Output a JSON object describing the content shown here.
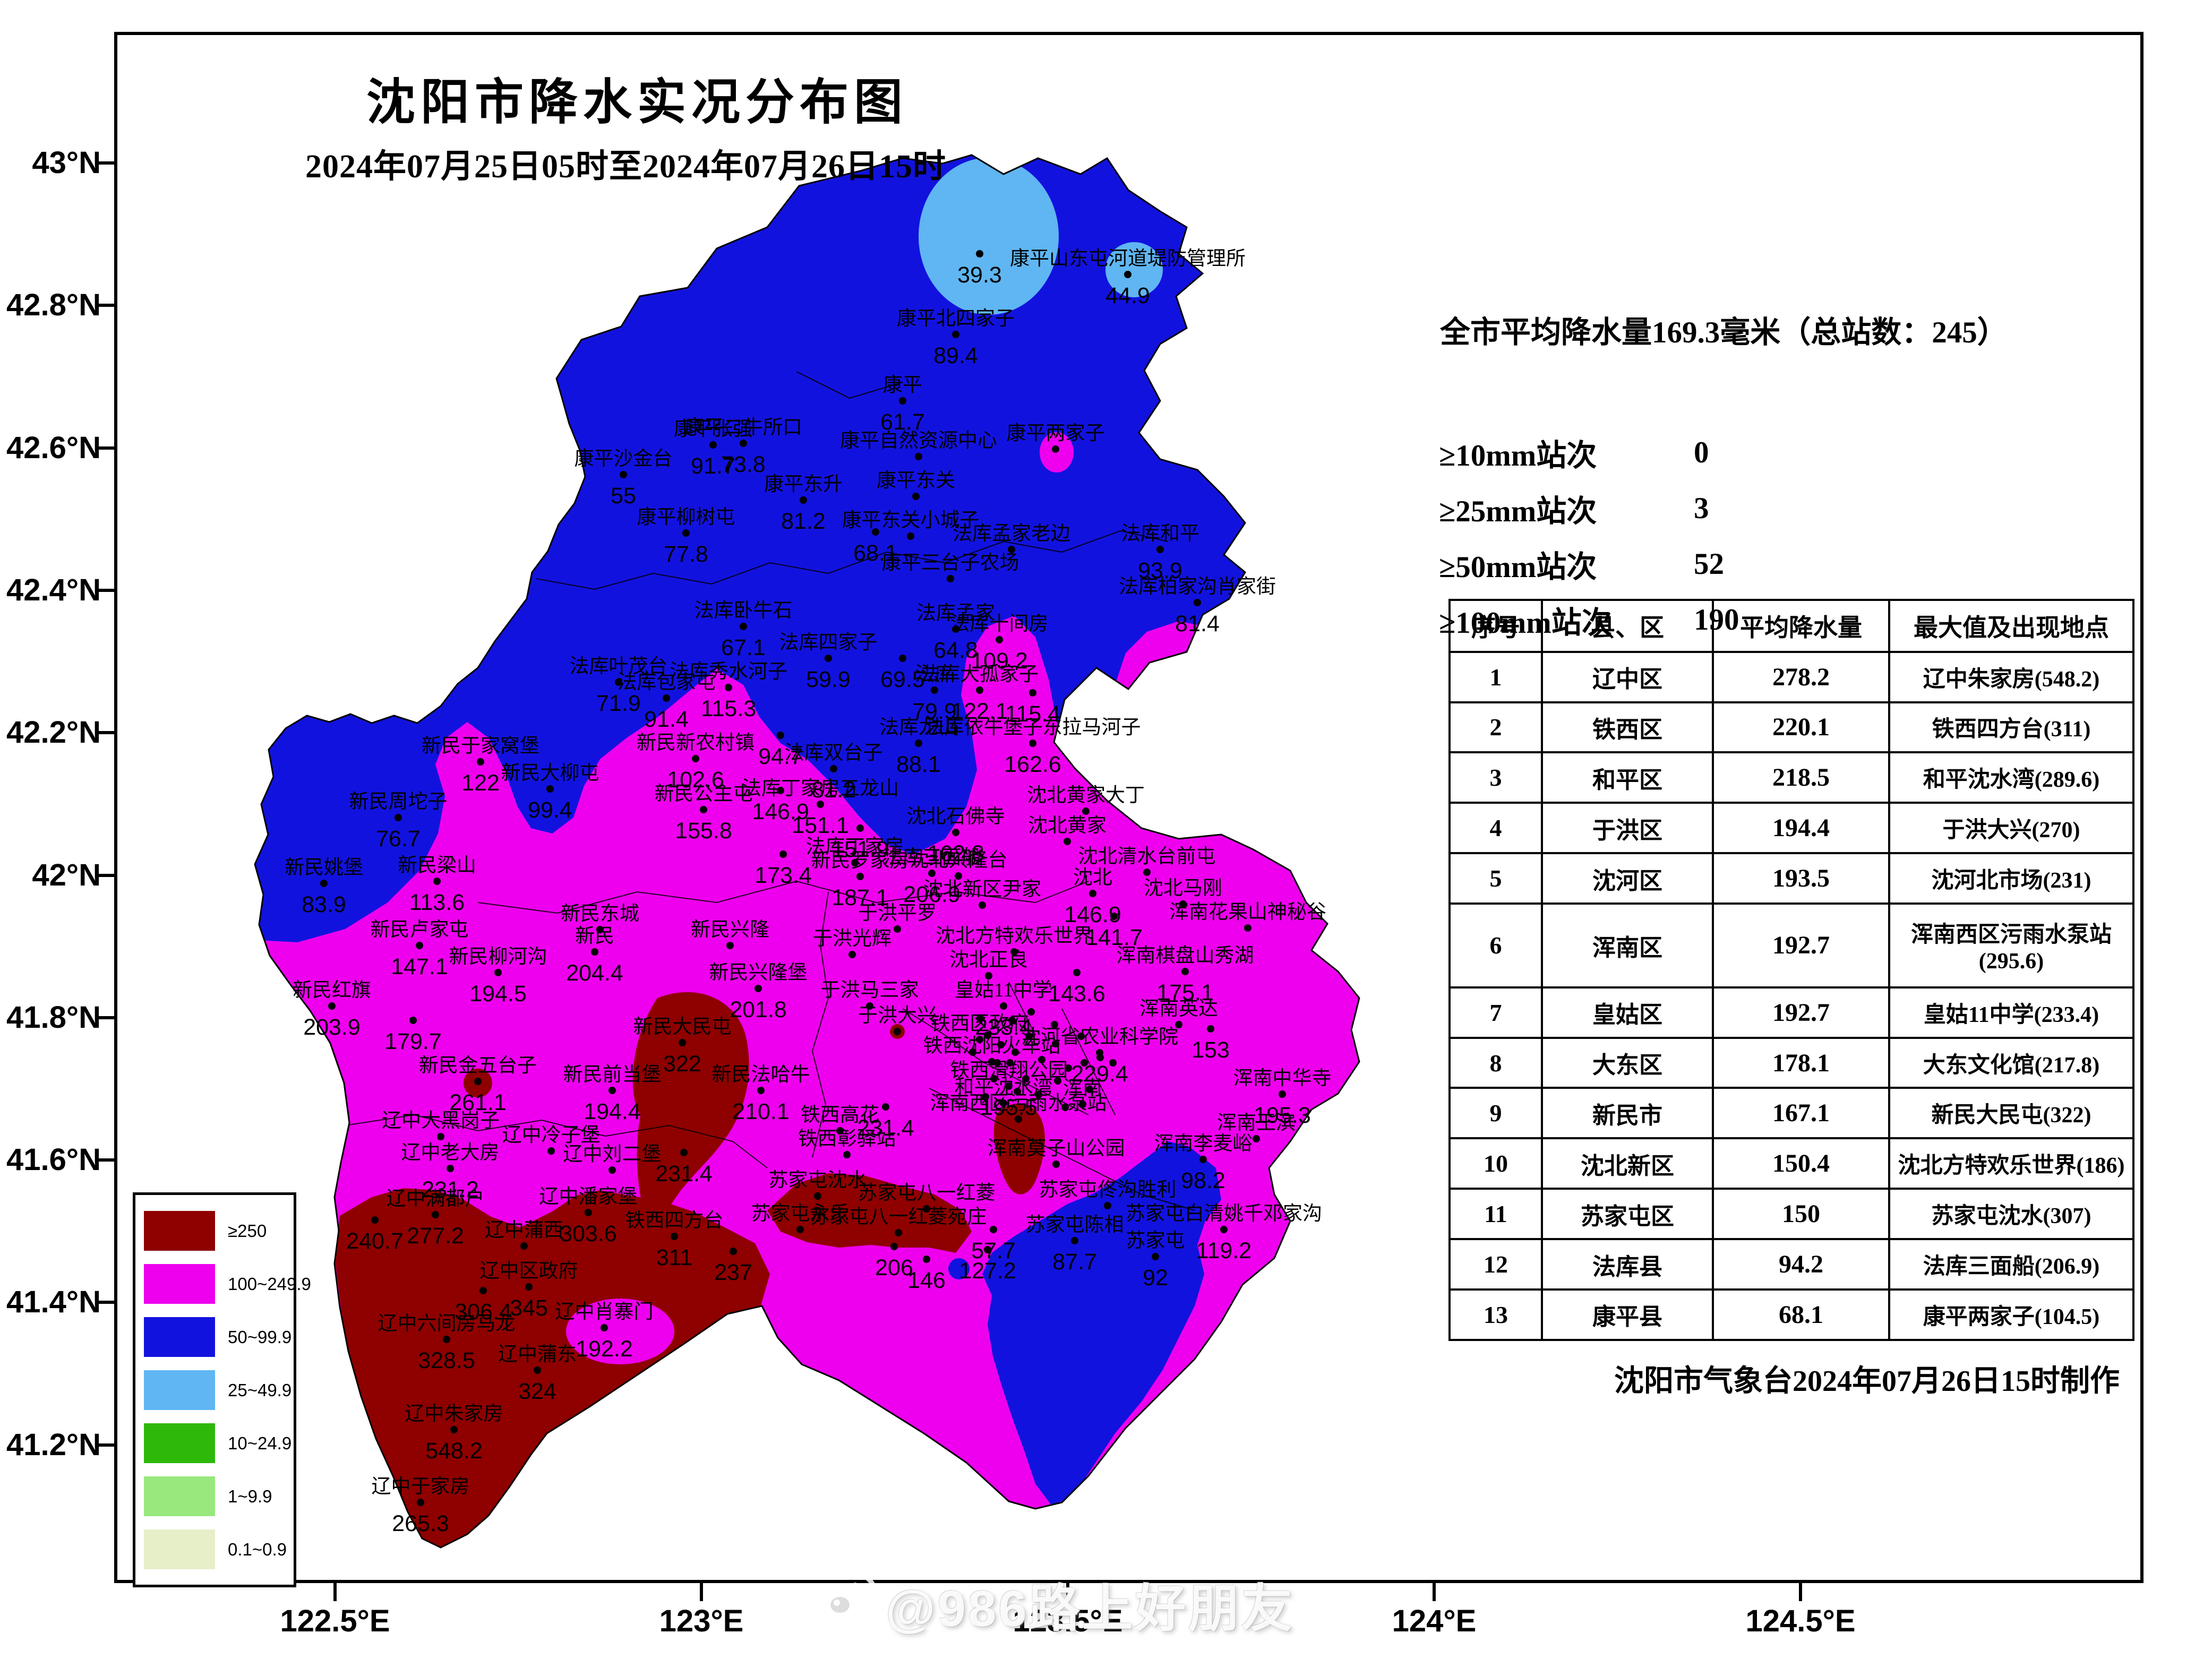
{
  "title": "沈阳市降水实况分布图",
  "subtitle": "2024年07月25日05时至2024年07月26日15时",
  "summary": "全市平均降水量169.3毫米（总站数：245）",
  "station_counts": [
    {
      "label": "≥10mm站次",
      "value": "0"
    },
    {
      "label": "≥25mm站次",
      "value": "3"
    },
    {
      "label": "≥50mm站次",
      "value": "52"
    },
    {
      "label": "≥100mm站次",
      "value": "190"
    }
  ],
  "axes": {
    "y_ticks": [
      "43°N",
      "42.8°N",
      "42.6°N",
      "42.4°N",
      "42.2°N",
      "42°N",
      "41.8°N",
      "41.6°N",
      "41.4°N",
      "41.2°N"
    ],
    "x_ticks": [
      "122.5°E",
      "123°E",
      "123.5°E",
      "124°E",
      "124.5°E"
    ]
  },
  "legend": [
    {
      "label": "≥250",
      "color": "#8F0000"
    },
    {
      "label": "100~249.9",
      "color": "#EE00EE"
    },
    {
      "label": "50~99.9",
      "color": "#1212DF"
    },
    {
      "label": "25~49.9",
      "color": "#5FB6F2"
    },
    {
      "label": "10~24.9",
      "color": "#2EB809"
    },
    {
      "label": "1~9.9",
      "color": "#98E87E"
    },
    {
      "label": "0.1~0.9",
      "color": "#E7EFC9"
    }
  ],
  "table": {
    "headers": [
      "序号",
      "县、区",
      "平均降水量",
      "最大值及出现地点"
    ],
    "rows": [
      {
        "no": "1",
        "district": "辽中区",
        "avg": "278.2",
        "max_place": "辽中朱家房",
        "max_value": "548.2"
      },
      {
        "no": "2",
        "district": "铁西区",
        "avg": "220.1",
        "max_place": "铁西四方台",
        "max_value": "311"
      },
      {
        "no": "3",
        "district": "和平区",
        "avg": "218.5",
        "max_place": "和平沈水湾",
        "max_value": "289.6"
      },
      {
        "no": "4",
        "district": "于洪区",
        "avg": "194.4",
        "max_place": "于洪大兴",
        "max_value": "270"
      },
      {
        "no": "5",
        "district": "沈河区",
        "avg": "193.5",
        "max_place": "沈河北市场",
        "max_value": "231"
      },
      {
        "no": "6",
        "district": "浑南区",
        "avg": "192.7",
        "max_place": "浑南西区污雨水泵站",
        "max_value": "295.6"
      },
      {
        "no": "7",
        "district": "皇姑区",
        "avg": "192.7",
        "max_place": "皇姑11中学",
        "max_value": "233.4"
      },
      {
        "no": "8",
        "district": "大东区",
        "avg": "178.1",
        "max_place": "大东文化馆",
        "max_value": "217.8"
      },
      {
        "no": "9",
        "district": "新民市",
        "avg": "167.1",
        "max_place": "新民大民屯",
        "max_value": "322"
      },
      {
        "no": "10",
        "district": "沈北新区",
        "avg": "150.4",
        "max_place": "沈北方特欢乐世界",
        "max_value": "186"
      },
      {
        "no": "11",
        "district": "苏家屯区",
        "avg": "150",
        "max_place": "苏家屯沈水",
        "max_value": "307"
      },
      {
        "no": "12",
        "district": "法库县",
        "avg": "94.2",
        "max_place": "法库三面船",
        "max_value": "206.9"
      },
      {
        "no": "13",
        "district": "康平县",
        "avg": "68.1",
        "max_place": "康平两家子",
        "max_value": "104.5"
      }
    ]
  },
  "footer": "沈阳市气象台2024年07月26日15时制作",
  "watermark": "@986路上好朋友",
  "map": {
    "stations": [
      [
        "",
        "39.3",
        1845,
        478
      ],
      [
        "康平山东屯河道堤防管理所",
        "44.9",
        2124,
        517
      ],
      [
        "康平北四家子",
        "89.4",
        1800,
        630
      ],
      [
        "康平",
        "61.7",
        1700,
        755
      ],
      [
        "康平两家子",
        "",
        1988,
        846
      ],
      [
        "康平二牛所口",
        "73.8",
        1400,
        835
      ],
      [
        "康平自然资源中心",
        "",
        1730,
        860
      ],
      [
        "康平东关",
        "",
        1725,
        935
      ],
      [
        "康平东关小城子",
        "",
        1715,
        1010
      ],
      [
        "康平三台子农场",
        "",
        1790,
        1090
      ],
      [
        "康平沙金台",
        "55",
        1174,
        894
      ],
      [
        "康平张强",
        "91.7",
        1343,
        838
      ],
      [
        "康平柳树屯",
        "77.8",
        1292,
        1004
      ],
      [
        "康平东升",
        "81.2",
        1513,
        942
      ],
      [
        "",
        "68.1",
        1649,
        1002
      ],
      [
        "法库孟家老边",
        "",
        1905,
        1035
      ],
      [
        "法库和平",
        "93.9",
        2185,
        1035
      ],
      [
        "法库柏家沟肖家街",
        "81.4",
        2255,
        1135
      ],
      [
        "法库孟家",
        "64.8",
        1800,
        1185
      ],
      [
        "",
        "69.5",
        1700,
        1240
      ],
      [
        "法库",
        "79.9",
        1760,
        1300
      ],
      [
        "法库十间房",
        "109.2",
        1882,
        1205
      ],
      [
        "法库大孤家子",
        "122.1",
        1845,
        1300
      ],
      [
        "",
        "115.4",
        1945,
        1305
      ],
      [
        "法库依牛堡子东拉马河子",
        "162.6",
        1945,
        1400
      ],
      [
        "法库卧牛石",
        "67.1",
        1400,
        1180
      ],
      [
        "法库秀水河子",
        "115.3",
        1372,
        1295
      ],
      [
        "法库叶茂台",
        "71.9",
        1165,
        1285
      ],
      [
        "法库包家屯",
        "91.4",
        1255,
        1315
      ],
      [
        "",
        "94.7",
        1470,
        1385
      ],
      [
        "法库四家子",
        "59.9",
        1560,
        1240
      ],
      [
        "法库丁家房五龙山",
        "151.1",
        1545,
        1515
      ],
      [
        "法库双台子",
        "81.2",
        1570,
        1448
      ],
      [
        "法库龙山",
        "88.1",
        1730,
        1400
      ],
      [
        "法库三面船",
        "206.9",
        1755,
        1645
      ],
      [
        "",
        "151.9",
        1620,
        1560
      ],
      [
        "法库丁家房",
        "",
        1610,
        1625
      ],
      [
        "新民于家窝堡",
        "122",
        905,
        1435
      ],
      [
        "新民大柳屯",
        "99.4",
        1036,
        1486
      ],
      [
        "新民新农村镇",
        "102.6",
        1310,
        1429
      ],
      [
        "新民公主屯",
        "155.8",
        1325,
        1525
      ],
      [
        "",
        "146.9",
        1470,
        1489
      ],
      [
        "",
        "173.4",
        1475,
        1609
      ],
      [
        "新民周坨子",
        "76.7",
        750,
        1540
      ],
      [
        "新民姚堡",
        "83.9",
        610,
        1664
      ],
      [
        "新民梁山",
        "113.6",
        823,
        1660
      ],
      [
        "新民东城",
        "",
        1130,
        1751
      ],
      [
        "新民",
        "204.4",
        1120,
        1793
      ],
      [
        "新民兴隆",
        "",
        1375,
        1781
      ],
      [
        "新民兴隆堡",
        "201.8",
        1428,
        1862
      ],
      [
        "新民卢家屯",
        "147.1",
        790,
        1781
      ],
      [
        "新民柳河沟",
        "194.5",
        938,
        1832
      ],
      [
        "新民红旗",
        "203.9",
        625,
        1895
      ],
      [
        "",
        "179.7",
        778,
        1922
      ],
      [
        "新民罗家房",
        "187.1",
        1620,
        1651
      ],
      [
        "新民金五台子",
        "261.1",
        900,
        2037
      ],
      [
        "新民大民屯",
        "322",
        1285,
        1964
      ],
      [
        "新民前当堡",
        "194.4",
        1153,
        2054
      ],
      [
        "新民法哈牛",
        "210.1",
        1433,
        2054
      ],
      [
        "辽中大黑岗子",
        "",
        830,
        2141
      ],
      [
        "辽中冷子堡",
        "",
        1038,
        2168
      ],
      [
        "辽中刘二堡",
        "",
        1153,
        2204
      ],
      [
        "",
        "231.4",
        1288,
        2171
      ],
      [
        "辽中老大房",
        "231.2",
        848,
        2201
      ],
      [
        "辽中满都户",
        "277.2",
        820,
        2288
      ],
      [
        "",
        "240.7",
        706,
        2298
      ],
      [
        "辽中潘家堡",
        "303.6",
        1108,
        2284
      ],
      [
        "辽中蒲西",
        "",
        987,
        2347
      ],
      [
        "铁西四方台",
        "311",
        1270,
        2329
      ],
      [
        "",
        "237",
        1381,
        2357
      ],
      [
        "辽中区政府",
        "345",
        996,
        2424
      ],
      [
        "",
        "306.4",
        910,
        2431
      ],
      [
        "辽中六间房马龙",
        "328.5",
        841,
        2523
      ],
      [
        "辽中蒲东",
        "324",
        1012,
        2581
      ],
      [
        "辽中肖寨门",
        "192.2",
        1138,
        2501
      ],
      [
        "辽中朱家房",
        "548.2",
        855,
        2693
      ],
      [
        "辽中于家房",
        "265.3",
        792,
        2830
      ],
      [
        "铁西区政府",
        "",
        1845,
        1958
      ],
      [
        "沈河省农业科学院",
        "229.4",
        2071,
        1983
      ],
      [
        "铁西沈阳火车站",
        "",
        1868,
        2000
      ],
      [
        "铁西滑翔公园",
        "195.5",
        1900,
        2046
      ],
      [
        "和平沈水湾",
        "",
        1890,
        2078
      ],
      [
        "浑南",
        "",
        2039,
        2080
      ],
      [
        "",
        "231.4",
        1668,
        2085
      ],
      [
        "铁西高花",
        "",
        1582,
        2130
      ],
      [
        "铁西彰驿站",
        "",
        1595,
        2175
      ],
      [
        "苏家屯沈水",
        "",
        1540,
        2253
      ],
      [
        "苏家屯永乐",
        "",
        1507,
        2316
      ],
      [
        "苏家屯八一红菱",
        "",
        1745,
        2277
      ],
      [
        "苏家屯八一红菱宛庄",
        "",
        1692,
        2322
      ],
      [
        "",
        "57.7",
        1871,
        2316
      ],
      [
        "",
        "206",
        1684,
        2348
      ],
      [
        "",
        "146",
        1745,
        2372
      ],
      [
        "",
        "127.2",
        1860,
        2354
      ],
      [
        "苏家屯佟沟胜利",
        "",
        2086,
        2271
      ],
      [
        "苏家屯陈相",
        "87.7",
        2024,
        2337
      ],
      [
        "苏家屯",
        "92",
        2176,
        2367
      ],
      [
        "苏家屯白清姚千邓家沟",
        "119.2",
        2305,
        2316
      ],
      [
        "浑南西区污雨水泵站",
        "",
        1918,
        2108
      ],
      [
        "浑南莫子山公园",
        "",
        1989,
        2193
      ],
      [
        "浑南中华寺",
        "195.3",
        2415,
        2061
      ],
      [
        "浑南王滨",
        "",
        2366,
        2145
      ],
      [
        "浑南李麦峪",
        "98.2",
        2266,
        2184
      ],
      [
        "沈北石佛寺",
        "162.8",
        1800,
        1568
      ],
      [
        "沈北黄家大丁",
        "",
        2045,
        1528
      ],
      [
        "沈北黄家",
        "",
        2010,
        1585
      ],
      [
        "沈北清水台前屯",
        "",
        2160,
        1643
      ],
      [
        "沈北",
        "146.9",
        2058,
        1683
      ],
      [
        "沈北马刚",
        "",
        2228,
        1703
      ],
      [
        "浑南花果山神秘谷",
        "",
        2350,
        1748
      ],
      [
        "",
        "141.7",
        2098,
        1726
      ],
      [
        "沈北兴隆台",
        "",
        1805,
        1650
      ],
      [
        "沈北新区尹家",
        "",
        1850,
        1705
      ],
      [
        "于洪平罗",
        "",
        1690,
        1750
      ],
      [
        "于洪光辉",
        "",
        1605,
        1798
      ],
      [
        "沈北方特欢乐世界",
        "",
        1910,
        1793
      ],
      [
        "沈北正良",
        "",
        1862,
        1838
      ],
      [
        "",
        "143.6",
        2028,
        1832
      ],
      [
        "浑南棋盘山秀湖",
        "175.1",
        2232,
        1830
      ],
      [
        "于洪马三家",
        "",
        1638,
        1895
      ],
      [
        "于洪大兴",
        "",
        1690,
        1943
      ],
      [
        "皇姑11中学",
        "233.4",
        1890,
        1895
      ],
      [
        "浑南英达",
        "",
        2220,
        1930
      ],
      [
        "",
        "153",
        2280,
        1938
      ]
    ],
    "anon_dots": [
      [
        1860,
        1950
      ],
      [
        1885,
        1968
      ],
      [
        1912,
        1982
      ],
      [
        1938,
        1952
      ],
      [
        1962,
        1996
      ],
      [
        1988,
        1966
      ],
      [
        2012,
        2012
      ],
      [
        1902,
        2002
      ],
      [
        1872,
        2032
      ],
      [
        1932,
        2032
      ],
      [
        1992,
        2036
      ],
      [
        2042,
        2002
      ],
      [
        1956,
        2062
      ],
      [
        1916,
        2056
      ],
      [
        2072,
        1992
      ],
      [
        2036,
        1952
      ],
      [
        1832,
        1982
      ],
      [
        1856,
        2066
      ],
      [
        2006,
        2086
      ],
      [
        1878,
        2002
      ],
      [
        1846,
        1918
      ],
      [
        1906,
        1922
      ],
      [
        1942,
        1906
      ],
      [
        1986,
        1930
      ],
      [
        2052,
        2052
      ],
      [
        2096,
        2002
      ]
    ]
  }
}
